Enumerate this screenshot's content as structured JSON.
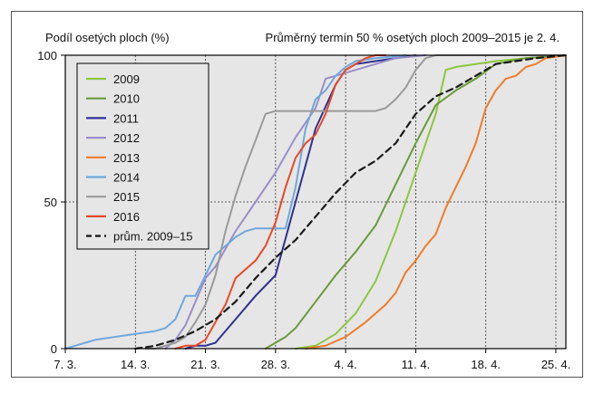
{
  "chart_data": {
    "type": "line",
    "title": "Průměrný termín 50 % osetých ploch 2009–2015 je 2. 4.",
    "ylabel": "Podíl osetých ploch (%)",
    "xlabel": "",
    "x_unit": "day of March (7.3. = 7)",
    "xlim": [
      7,
      57
    ],
    "ylim": [
      0,
      100
    ],
    "x_ticks": [
      {
        "x": 7,
        "label": "7. 3."
      },
      {
        "x": 14,
        "label": "14. 3."
      },
      {
        "x": 21,
        "label": "21. 3."
      },
      {
        "x": 28,
        "label": "28. 3."
      },
      {
        "x": 35,
        "label": "4. 4."
      },
      {
        "x": 42,
        "label": "11. 4."
      },
      {
        "x": 49,
        "label": "18. 4."
      },
      {
        "x": 56,
        "label": "25. 4."
      }
    ],
    "y_ticks": [
      {
        "y": 0,
        "label": "0"
      },
      {
        "y": 50,
        "label": "50"
      },
      {
        "y": 100,
        "label": "100"
      }
    ],
    "grid": "dotted",
    "legend_position": "top-left",
    "series": [
      {
        "name": "2009",
        "color": "#8dc63f",
        "dash": false,
        "x": [
          30,
          32,
          34,
          36,
          38,
          40,
          42,
          44,
          45,
          46,
          48,
          50,
          53,
          57
        ],
        "y": [
          0,
          1,
          5,
          12,
          23,
          40,
          60,
          80,
          95,
          96,
          97,
          98,
          99,
          100
        ]
      },
      {
        "name": "2010",
        "color": "#6a9a3a",
        "dash": false,
        "x": [
          27,
          29,
          30,
          32,
          34,
          36,
          38,
          40,
          42,
          44,
          46,
          48,
          50,
          53,
          57
        ],
        "y": [
          0,
          4,
          7,
          16,
          25,
          33,
          42,
          56,
          70,
          83,
          88,
          92,
          97,
          99,
          100
        ]
      },
      {
        "name": "2011",
        "color": "#2e3192",
        "dash": false,
        "x": [
          19,
          20,
          21,
          22,
          24,
          26,
          28,
          30,
          32,
          34,
          35,
          36,
          38,
          40,
          42
        ],
        "y": [
          0,
          1,
          1,
          2,
          10,
          18,
          25,
          50,
          75,
          90,
          95,
          97,
          98,
          99,
          100
        ]
      },
      {
        "name": "2012",
        "color": "#9b8ec9",
        "dash": false,
        "x": [
          17,
          18,
          19,
          20,
          21,
          22,
          24,
          26,
          28,
          30,
          32,
          33,
          34,
          36,
          38,
          40,
          43
        ],
        "y": [
          0,
          3,
          8,
          16,
          24,
          28,
          40,
          50,
          60,
          72,
          82,
          92,
          93,
          95,
          97,
          99,
          100
        ]
      },
      {
        "name": "2013",
        "color": "#f07c28",
        "dash": false,
        "x": [
          31,
          33,
          35,
          37,
          39,
          40,
          41,
          42,
          43,
          44,
          45,
          46,
          47,
          48,
          49,
          50,
          51,
          52,
          53,
          54,
          55,
          57
        ],
        "y": [
          0,
          1,
          4,
          9,
          15,
          19,
          26,
          30,
          35,
          39,
          48,
          55,
          62,
          70,
          82,
          88,
          92,
          93,
          96,
          97,
          99,
          100
        ]
      },
      {
        "name": "2014",
        "color": "#6fa8dc",
        "dash": false,
        "x": [
          7,
          8,
          9,
          10,
          12,
          14,
          16,
          17,
          18,
          19,
          20,
          21,
          22,
          24,
          25,
          26,
          27,
          28,
          29,
          30,
          31,
          32,
          33,
          34,
          35,
          36,
          38,
          41
        ],
        "y": [
          0,
          1,
          2,
          3,
          4,
          5,
          6,
          7,
          10,
          18,
          18,
          25,
          32,
          38,
          40,
          41,
          41,
          41,
          41,
          55,
          75,
          85,
          88,
          93,
          96,
          98,
          99,
          100
        ]
      },
      {
        "name": "2015",
        "color": "#9a9a9a",
        "dash": false,
        "x": [
          15,
          16,
          17,
          18,
          19,
          20,
          21,
          22,
          23,
          24,
          25,
          26,
          27,
          28,
          29,
          30,
          33,
          35,
          36,
          37,
          38,
          39,
          40,
          41,
          42,
          43,
          44,
          48,
          51,
          53,
          57
        ],
        "y": [
          0,
          0,
          1,
          2,
          4,
          9,
          15,
          25,
          40,
          52,
          62,
          71,
          80,
          81,
          81,
          81,
          81,
          81,
          81,
          81,
          81,
          82,
          85,
          89,
          95,
          99,
          100,
          100,
          100,
          100,
          100
        ]
      },
      {
        "name": "2016",
        "color": "#e8492a",
        "dash": false,
        "x": [
          18,
          19,
          20,
          21,
          22,
          23,
          24,
          25,
          26,
          27,
          28,
          29,
          30,
          31,
          32,
          33,
          34,
          35,
          36,
          37,
          38,
          39
        ],
        "y": [
          0,
          1,
          1,
          3,
          9,
          15,
          24,
          27,
          30,
          35,
          43,
          55,
          65,
          70,
          73,
          80,
          90,
          95,
          97,
          99,
          100,
          100
        ]
      },
      {
        "name": "prům. 2009–15",
        "color": "#1a1a1a",
        "dash": true,
        "x": [
          14,
          16,
          18,
          20,
          22,
          24,
          26,
          28,
          30,
          32,
          34,
          36,
          38,
          40,
          42,
          44,
          46,
          48,
          50,
          52,
          54,
          57
        ],
        "y": [
          0,
          1,
          3,
          6,
          10,
          16,
          24,
          31,
          37,
          45,
          53,
          60,
          64,
          70,
          80,
          86,
          89,
          93,
          97,
          98,
          99,
          100
        ]
      }
    ]
  }
}
